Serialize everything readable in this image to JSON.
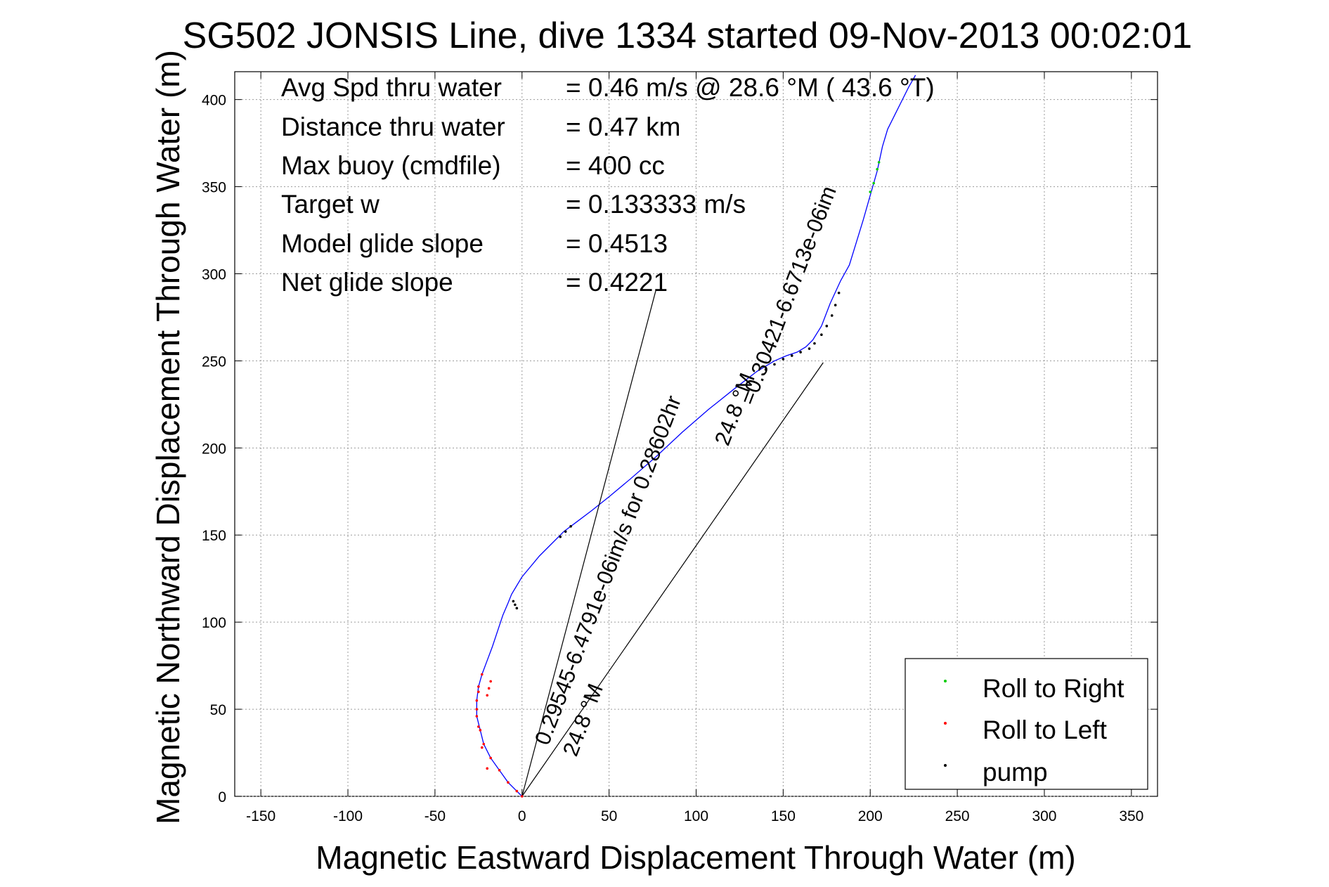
{
  "chart_data": {
    "type": "line",
    "title": "SG502 JONSIS Line, dive 1334 started 09-Nov-2013 00:02:01",
    "xlabel": "Magnetic Eastward Displacement Through Water (m)",
    "ylabel": "Magnetic Northward Displacement Through Water (m)",
    "xlim": [
      -165,
      365
    ],
    "ylim": [
      0,
      416
    ],
    "xticks": [
      -150,
      -100,
      -50,
      0,
      50,
      100,
      150,
      200,
      250,
      300,
      350
    ],
    "yticks": [
      0,
      50,
      100,
      150,
      200,
      250,
      300,
      350,
      400
    ],
    "grid": true,
    "annotations": [
      {
        "label": "Avg Spd thru water",
        "value": "=  0.46 m/s @  28.6 °M ( 43.6 °T)"
      },
      {
        "label": "Distance thru water",
        "value": "=  0.47 km"
      },
      {
        "label": "Max buoy (cmdfile)",
        "value": "= 400 cc"
      },
      {
        "label": "Target w",
        "value": "= 0.133333 m/s"
      },
      {
        "label": "Model glide slope",
        "value": "= 0.4513"
      },
      {
        "label": "Net glide slope",
        "value": "= 0.4221"
      }
    ],
    "current_labels": {
      "first": "0.29545-6.4791e-06im/s for 0.28602hr",
      "first_heading": "24.8 °M",
      "second": "=0.30421-6.6713e-06im",
      "second_heading": "24.8 °M"
    },
    "series": [
      {
        "name": "track",
        "color": "#0000ff",
        "x": [
          0,
          -3,
          -8,
          -13,
          -18,
          -22,
          -24,
          -26,
          -26,
          -25,
          -23,
          -20,
          -17,
          -14,
          -11,
          -8,
          -6,
          -3,
          0,
          5,
          10,
          17,
          24,
          32,
          40,
          50,
          62,
          77,
          92,
          107,
          122,
          135,
          145,
          152,
          158,
          163,
          167,
          172,
          177,
          183,
          188,
          192,
          196,
          200,
          204,
          207,
          210,
          214,
          218,
          222,
          226
        ],
        "y": [
          0,
          3,
          8,
          15,
          22,
          30,
          38,
          46,
          55,
          63,
          70,
          78,
          86,
          95,
          104,
          111,
          116,
          121,
          126,
          132,
          138,
          145,
          152,
          158,
          164,
          172,
          182,
          195,
          209,
          222,
          234,
          244,
          250,
          253,
          255,
          258,
          262,
          270,
          283,
          296,
          305,
          318,
          331,
          345,
          359,
          373,
          383,
          391,
          399,
          407,
          414
        ]
      },
      {
        "name": "current line 1",
        "color": "#000000",
        "x": [
          0,
          77
        ],
        "y": [
          0,
          291
        ]
      },
      {
        "name": "current line 2",
        "color": "#000000",
        "x": [
          0,
          173
        ],
        "y": [
          0,
          249
        ]
      }
    ],
    "roll_left_x": [
      0,
      -3,
      -8,
      -13,
      -18,
      -22,
      -24,
      -26,
      -26,
      -25,
      -23,
      -20,
      -19,
      -18,
      -20,
      -23,
      -25,
      -26,
      -25
    ],
    "roll_left_y": [
      0,
      3,
      8,
      15,
      22,
      30,
      38,
      46,
      55,
      63,
      70,
      58,
      62,
      66,
      16,
      28,
      40,
      50,
      60
    ],
    "roll_right_x": [
      200,
      202,
      204,
      205
    ],
    "roll_right_y": [
      347,
      352,
      360,
      364
    ],
    "pump_x": [
      -5,
      -4,
      -3,
      22,
      25,
      28,
      140,
      145,
      150,
      155,
      160,
      165,
      168,
      172,
      175,
      178,
      180,
      182
    ],
    "pump_y": [
      112,
      110,
      108,
      149,
      152,
      155,
      245,
      248,
      251,
      253,
      255,
      257,
      260,
      265,
      270,
      276,
      282,
      289
    ],
    "legend": {
      "position": "bottom-right",
      "entries": [
        {
          "label": "Roll to Right",
          "color": "#00cc00"
        },
        {
          "label": "Roll to Left",
          "color": "#ff0000"
        },
        {
          "label": "pump",
          "color": "#000000"
        }
      ]
    }
  }
}
